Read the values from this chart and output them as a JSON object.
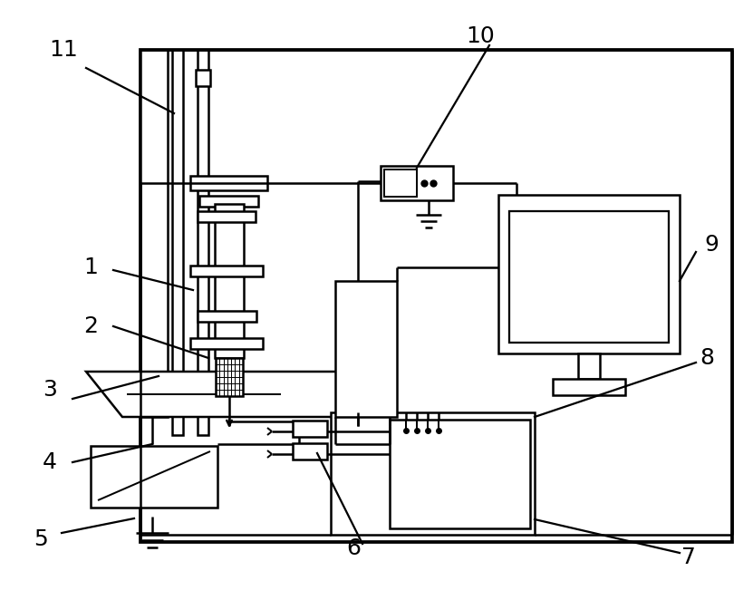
{
  "bg_color": "#ffffff",
  "line_color": "#000000",
  "lw": 1.8,
  "fig_width": 8.31,
  "fig_height": 6.62
}
